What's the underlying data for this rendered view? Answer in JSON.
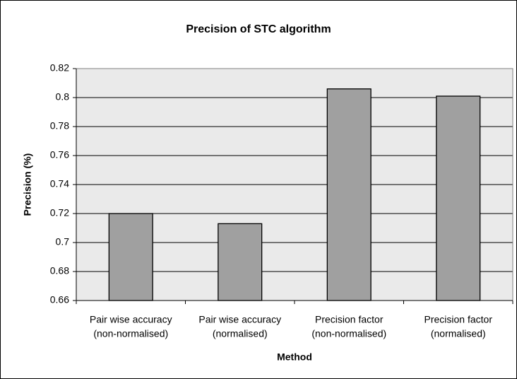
{
  "chart_data": {
    "type": "bar",
    "title": "Precision of STC algorithm",
    "x_label": "Method",
    "y_label": "Precision (%)",
    "categories": [
      [
        "Pair wise accuracy",
        "(non-normalised)"
      ],
      [
        "Pair wise accuracy",
        "(normalised)"
      ],
      [
        "Precision factor",
        "(non-normalised)"
      ],
      [
        "Precision factor",
        "(normalised)"
      ]
    ],
    "values": [
      0.72,
      0.713,
      0.806,
      0.801
    ],
    "color": "#a0a0a0",
    "ylim": [
      0.66,
      0.82
    ],
    "yticks": [
      0.66,
      0.68,
      0.7,
      0.72,
      0.74,
      0.76,
      0.78,
      0.8,
      0.82
    ],
    "grid": true
  }
}
